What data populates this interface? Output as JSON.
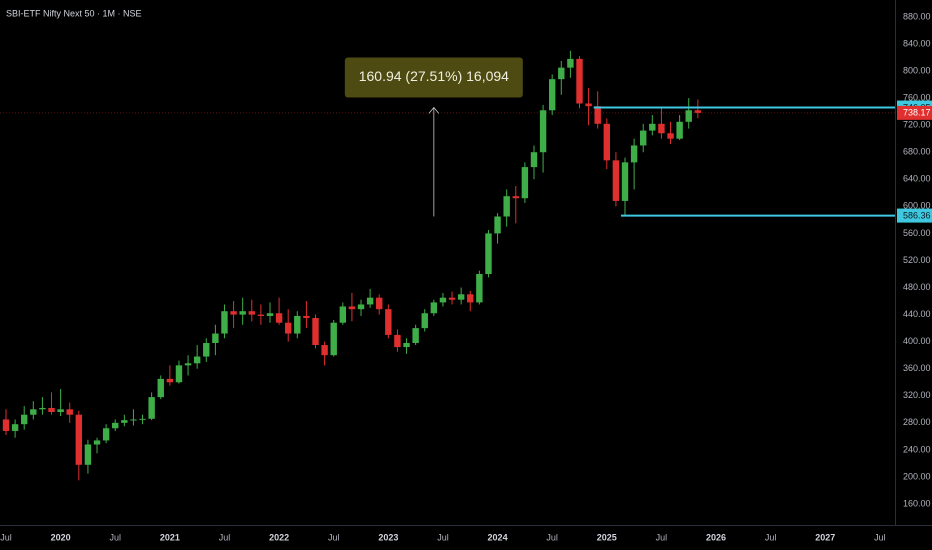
{
  "chart_data": {
    "type": "candlestick",
    "title": "SBI-ETF Nifty Next 50 · 1M · NSE",
    "up_color": "#3fae49",
    "down_color": "#e02f2f",
    "x": [
      "2019-07",
      "2019-08",
      "2019-09",
      "2019-10",
      "2019-11",
      "2019-12",
      "2020-01",
      "2020-02",
      "2020-03",
      "2020-04",
      "2020-05",
      "2020-06",
      "2020-07",
      "2020-08",
      "2020-09",
      "2020-10",
      "2020-11",
      "2020-12",
      "2021-01",
      "2021-02",
      "2021-03",
      "2021-04",
      "2021-05",
      "2021-06",
      "2021-07",
      "2021-08",
      "2021-09",
      "2021-10",
      "2021-11",
      "2021-12",
      "2022-01",
      "2022-02",
      "2022-03",
      "2022-04",
      "2022-05",
      "2022-06",
      "2022-07",
      "2022-08",
      "2022-09",
      "2022-10",
      "2022-11",
      "2022-12",
      "2023-01",
      "2023-02",
      "2023-03",
      "2023-04",
      "2023-05",
      "2023-06",
      "2023-07",
      "2023-08",
      "2023-09",
      "2023-10",
      "2023-11",
      "2023-12",
      "2024-01",
      "2024-02",
      "2024-03",
      "2024-04",
      "2024-05",
      "2024-06",
      "2024-07",
      "2024-08",
      "2024-09",
      "2024-10",
      "2024-11",
      "2024-12",
      "2025-01",
      "2025-02",
      "2025-03",
      "2025-04",
      "2025-05",
      "2025-06",
      "2025-07",
      "2025-08",
      "2025-09",
      "2025-10",
      "2025-11"
    ],
    "open": [
      285,
      268,
      278,
      292,
      300,
      302,
      296,
      300,
      292,
      218,
      248,
      254,
      272,
      280,
      284,
      285,
      286,
      318,
      345,
      340,
      365,
      368,
      378,
      398,
      412,
      445,
      440,
      445,
      440,
      438,
      442,
      428,
      412,
      438,
      435,
      395,
      380,
      428,
      452,
      448,
      455,
      465,
      448,
      410,
      392,
      398,
      420,
      442,
      458,
      465,
      462,
      470,
      458,
      500,
      560,
      585,
      615,
      612,
      658,
      680,
      742,
      788,
      805,
      818,
      752,
      748,
      722,
      668,
      608,
      665,
      690,
      712,
      722,
      708,
      700,
      725,
      742
    ],
    "high": [
      300,
      285,
      305,
      312,
      318,
      325,
      330,
      310,
      298,
      255,
      258,
      278,
      285,
      292,
      300,
      292,
      325,
      350,
      365,
      372,
      380,
      395,
      405,
      425,
      455,
      460,
      465,
      462,
      455,
      458,
      465,
      448,
      445,
      460,
      440,
      400,
      432,
      458,
      472,
      462,
      478,
      470,
      455,
      418,
      405,
      425,
      448,
      462,
      472,
      474,
      480,
      475,
      505,
      565,
      590,
      625,
      630,
      665,
      690,
      750,
      795,
      815,
      830,
      822,
      775,
      770,
      730,
      680,
      672,
      700,
      722,
      735,
      745,
      725,
      735,
      760,
      758
    ],
    "low": [
      262,
      258,
      270,
      285,
      292,
      292,
      290,
      280,
      195,
      205,
      235,
      250,
      268,
      275,
      276,
      278,
      284,
      315,
      335,
      338,
      350,
      360,
      370,
      380,
      405,
      420,
      425,
      430,
      425,
      428,
      425,
      400,
      405,
      420,
      390,
      365,
      378,
      425,
      430,
      438,
      450,
      440,
      405,
      385,
      382,
      395,
      415,
      438,
      452,
      455,
      455,
      445,
      455,
      495,
      545,
      570,
      575,
      605,
      640,
      650,
      735,
      765,
      790,
      745,
      720,
      715,
      655,
      600,
      586.36,
      625,
      680,
      705,
      700,
      692,
      698,
      715,
      730
    ],
    "close": [
      268,
      278,
      292,
      300,
      302,
      296,
      300,
      292,
      218,
      248,
      254,
      272,
      280,
      284,
      285,
      286,
      318,
      345,
      340,
      365,
      368,
      378,
      398,
      412,
      445,
      440,
      445,
      440,
      438,
      442,
      428,
      412,
      438,
      435,
      395,
      380,
      428,
      452,
      448,
      455,
      465,
      448,
      410,
      392,
      398,
      420,
      442,
      458,
      465,
      462,
      470,
      458,
      500,
      560,
      585,
      615,
      612,
      658,
      680,
      742,
      788,
      805,
      818,
      752,
      748,
      722,
      668,
      608,
      665,
      690,
      712,
      722,
      708,
      700,
      725,
      742,
      738.17
    ],
    "xlim": [
      "2019-07",
      "2027-08"
    ],
    "xticks": [
      {
        "value": "2019-07",
        "label": "Jul"
      },
      {
        "value": "2020-01",
        "label": "2020"
      },
      {
        "value": "2020-07",
        "label": "Jul"
      },
      {
        "value": "2021-01",
        "label": "2021"
      },
      {
        "value": "2021-07",
        "label": "Jul"
      },
      {
        "value": "2022-01",
        "label": "2022"
      },
      {
        "value": "2022-07",
        "label": "Jul"
      },
      {
        "value": "2023-01",
        "label": "2023"
      },
      {
        "value": "2023-07",
        "label": "Jul"
      },
      {
        "value": "2024-01",
        "label": "2024"
      },
      {
        "value": "2024-07",
        "label": "Jul"
      },
      {
        "value": "2025-01",
        "label": "2025"
      },
      {
        "value": "2025-07",
        "label": "Jul"
      },
      {
        "value": "2026-01",
        "label": "2026"
      },
      {
        "value": "2026-07",
        "label": "Jul"
      },
      {
        "value": "2027-01",
        "label": "2027"
      },
      {
        "value": "2027-07",
        "label": "Jul"
      }
    ],
    "ylim": [
      129,
      905
    ],
    "yticks": [
      {
        "value": 160,
        "label": "160.00"
      },
      {
        "value": 200,
        "label": "200.00"
      },
      {
        "value": 240,
        "label": "240.00"
      },
      {
        "value": 280,
        "label": "280.00"
      },
      {
        "value": 320,
        "label": "320.00"
      },
      {
        "value": 360,
        "label": "360.00"
      },
      {
        "value": 400,
        "label": "400.00"
      },
      {
        "value": 440,
        "label": "440.00"
      },
      {
        "value": 480,
        "label": "480.00"
      },
      {
        "value": 520,
        "label": "520.00"
      },
      {
        "value": 560,
        "label": "560.00"
      },
      {
        "value": 600,
        "label": "600.00"
      },
      {
        "value": 640,
        "label": "640.00"
      },
      {
        "value": 680,
        "label": "680.00"
      },
      {
        "value": 720,
        "label": "720.00"
      },
      {
        "value": 760,
        "label": "760.00"
      },
      {
        "value": 800,
        "label": "800.00"
      },
      {
        "value": 840,
        "label": "840.00"
      },
      {
        "value": 880,
        "label": "880.00"
      }
    ],
    "grid": false,
    "hlines": [
      {
        "value": 746.05,
        "from": "2024-12",
        "color": "#3ec9e0"
      },
      {
        "value": 586.36,
        "from": "2025-03",
        "color": "#3ec9e0"
      }
    ],
    "measure": {
      "x": "2023-06",
      "from": 585.11,
      "to": 746.05,
      "label": "160.94 (27.51%) 16,094",
      "color": "#4d4a12"
    }
  }
}
